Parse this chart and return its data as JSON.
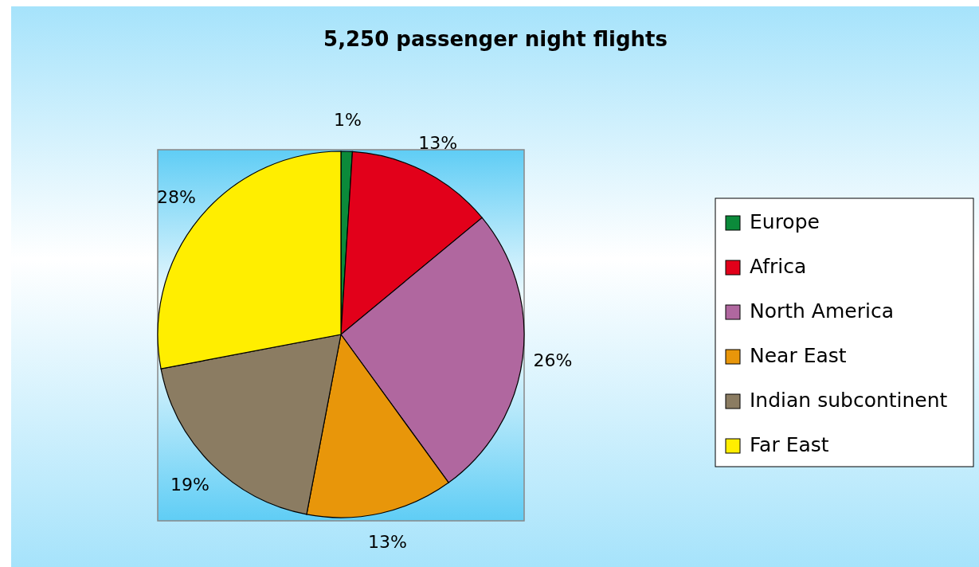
{
  "chart_data": {
    "type": "pie",
    "title": "5,250 passenger night flights",
    "categories": [
      "Europe",
      "Africa",
      "North America",
      "Near East",
      "Indian subcontinent",
      "Far East"
    ],
    "values": [
      1,
      13,
      26,
      13,
      19,
      28
    ],
    "colors": [
      "#0b8a3a",
      "#e2001a",
      "#b0679f",
      "#e8960a",
      "#8b7c62",
      "#ffee00"
    ],
    "value_labels": [
      "1%",
      "13%",
      "26%",
      "13%",
      "19%",
      "28%"
    ],
    "legend": "right"
  }
}
